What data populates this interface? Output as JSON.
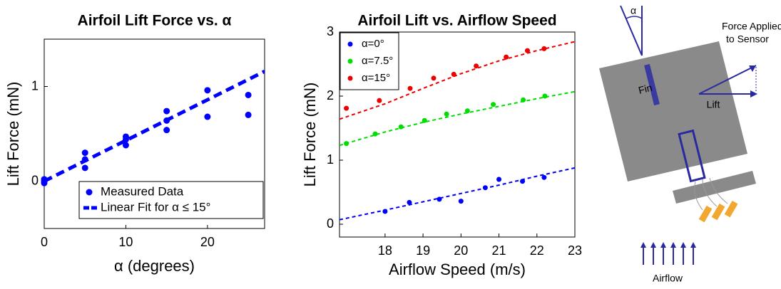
{
  "chart_data": [
    {
      "type": "scatter",
      "title": "Airfoil Lift Force vs. α",
      "x_label": "α (degrees)",
      "y_label": "Lift Force (mN)",
      "xlim": [
        0,
        27
      ],
      "ylim": [
        -0.5,
        1.5
      ],
      "xticks": [
        0,
        10,
        20
      ],
      "yticks": [
        0,
        1
      ],
      "legend": "lower right",
      "series": [
        {
          "name": "Measured Data",
          "color": "#0000ff",
          "mode": "markers",
          "x": [
            0,
            0,
            0,
            5,
            5,
            5,
            10,
            10,
            10,
            15,
            15,
            15,
            20,
            20,
            25,
            25
          ],
          "values": [
            -0.02,
            0,
            0.02,
            0.3,
            0.23,
            0.14,
            0.47,
            0.44,
            0.38,
            0.74,
            0.64,
            0.54,
            0.96,
            0.68,
            0.91,
            0.7
          ]
        },
        {
          "name": "Linear Fit for α ≤ 15°",
          "color": "#0000ff",
          "mode": "line",
          "x": [
            0,
            27
          ],
          "values": [
            0,
            1.16
          ]
        }
      ]
    },
    {
      "type": "scatter",
      "title": "Airfoil Lift vs. Airflow Speed",
      "x_label": "Airflow Speed (m/s)",
      "y_label": "Lift Force (mN)",
      "xlim": [
        16.8,
        23
      ],
      "ylim": [
        -0.2,
        3
      ],
      "xticks": [
        18,
        19,
        20,
        21,
        22,
        23
      ],
      "yticks": [
        0,
        1,
        2,
        3
      ],
      "legend": "upper left",
      "series": [
        {
          "name": "α=0°",
          "color": "#0000ff",
          "mode": "markers",
          "x": [
            18.0,
            18.64,
            19.43,
            20.0,
            20.64,
            21.0,
            21.62,
            22.19
          ],
          "values": [
            0.2,
            0.34,
            0.39,
            0.36,
            0.57,
            0.7,
            0.67,
            0.73
          ],
          "fit": {
            "x": [
              16.8,
              18,
              19,
              20,
              21,
              22,
              23
            ],
            "values": [
              0.07,
              0.22,
              0.35,
              0.48,
              0.61,
              0.75,
              0.88
            ]
          }
        },
        {
          "name": "α=7.5°",
          "color": "#00dd00",
          "mode": "markers",
          "x": [
            16.98,
            17.74,
            18.42,
            19.04,
            19.62,
            20.17,
            20.85,
            21.64,
            22.21
          ],
          "values": [
            1.26,
            1.41,
            1.52,
            1.62,
            1.72,
            1.77,
            1.87,
            1.94,
            2.0
          ],
          "fit": {
            "x": [
              16.8,
              18,
              19,
              20,
              21,
              22,
              23
            ],
            "values": [
              1.23,
              1.44,
              1.59,
              1.72,
              1.84,
              1.96,
              2.07
            ]
          }
        },
        {
          "name": "α=15°",
          "color": "#ee0000",
          "mode": "markers",
          "x": [
            16.98,
            17.85,
            18.66,
            19.28,
            19.81,
            20.4,
            21.19,
            21.75,
            22.19
          ],
          "values": [
            1.81,
            1.93,
            2.12,
            2.28,
            2.34,
            2.47,
            2.61,
            2.71,
            2.74
          ],
          "fit": {
            "x": [
              16.8,
              18,
              19,
              20,
              21,
              22,
              23
            ],
            "values": [
              1.64,
              1.88,
              2.12,
              2.35,
              2.55,
              2.71,
              2.85
            ]
          }
        }
      ]
    }
  ],
  "diagram": {
    "alpha": "α",
    "force": [
      "Force Applied",
      "to Sensor"
    ],
    "lift": "Lift",
    "fin": "Fin",
    "airflow": "Airflow"
  }
}
